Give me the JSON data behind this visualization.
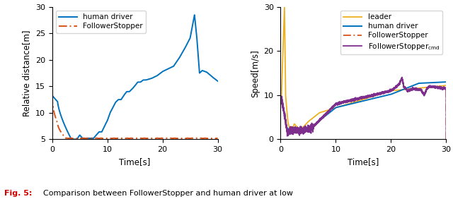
{
  "left_plot": {
    "xlabel": "Time[s]",
    "ylabel": "Relative distance[m]",
    "xlim": [
      0,
      30
    ],
    "ylim": [
      5,
      30
    ],
    "yticks": [
      5,
      10,
      15,
      20,
      25,
      30
    ],
    "xticks": [
      0,
      10,
      20,
      30
    ],
    "human_driver_color": "#0072BD",
    "follower_color": "#D95319",
    "human_driver_label": "human driver",
    "follower_label": "FollowerStopper"
  },
  "right_plot": {
    "xlabel": "Time[s]",
    "ylabel": "Speed[m/s]",
    "xlim": [
      0,
      30
    ],
    "ylim": [
      0,
      30
    ],
    "yticks": [
      0,
      10,
      20,
      30
    ],
    "xticks": [
      0,
      10,
      20,
      30
    ],
    "leader_color": "#EDB120",
    "human_driver_color": "#0072BD",
    "follower_color": "#D95319",
    "follower_cmd_color": "#7E2F8E",
    "leader_label": "leader",
    "human_driver_label": "human driver",
    "follower_label": "FollowerStopper",
    "follower_cmd_label": "FollowerStopper"
  },
  "caption_bold_color": "#CC0000",
  "caption_bold": "Fig. 5:",
  "caption_rest": "  Comparison between FollowerStopper and human driver at low"
}
